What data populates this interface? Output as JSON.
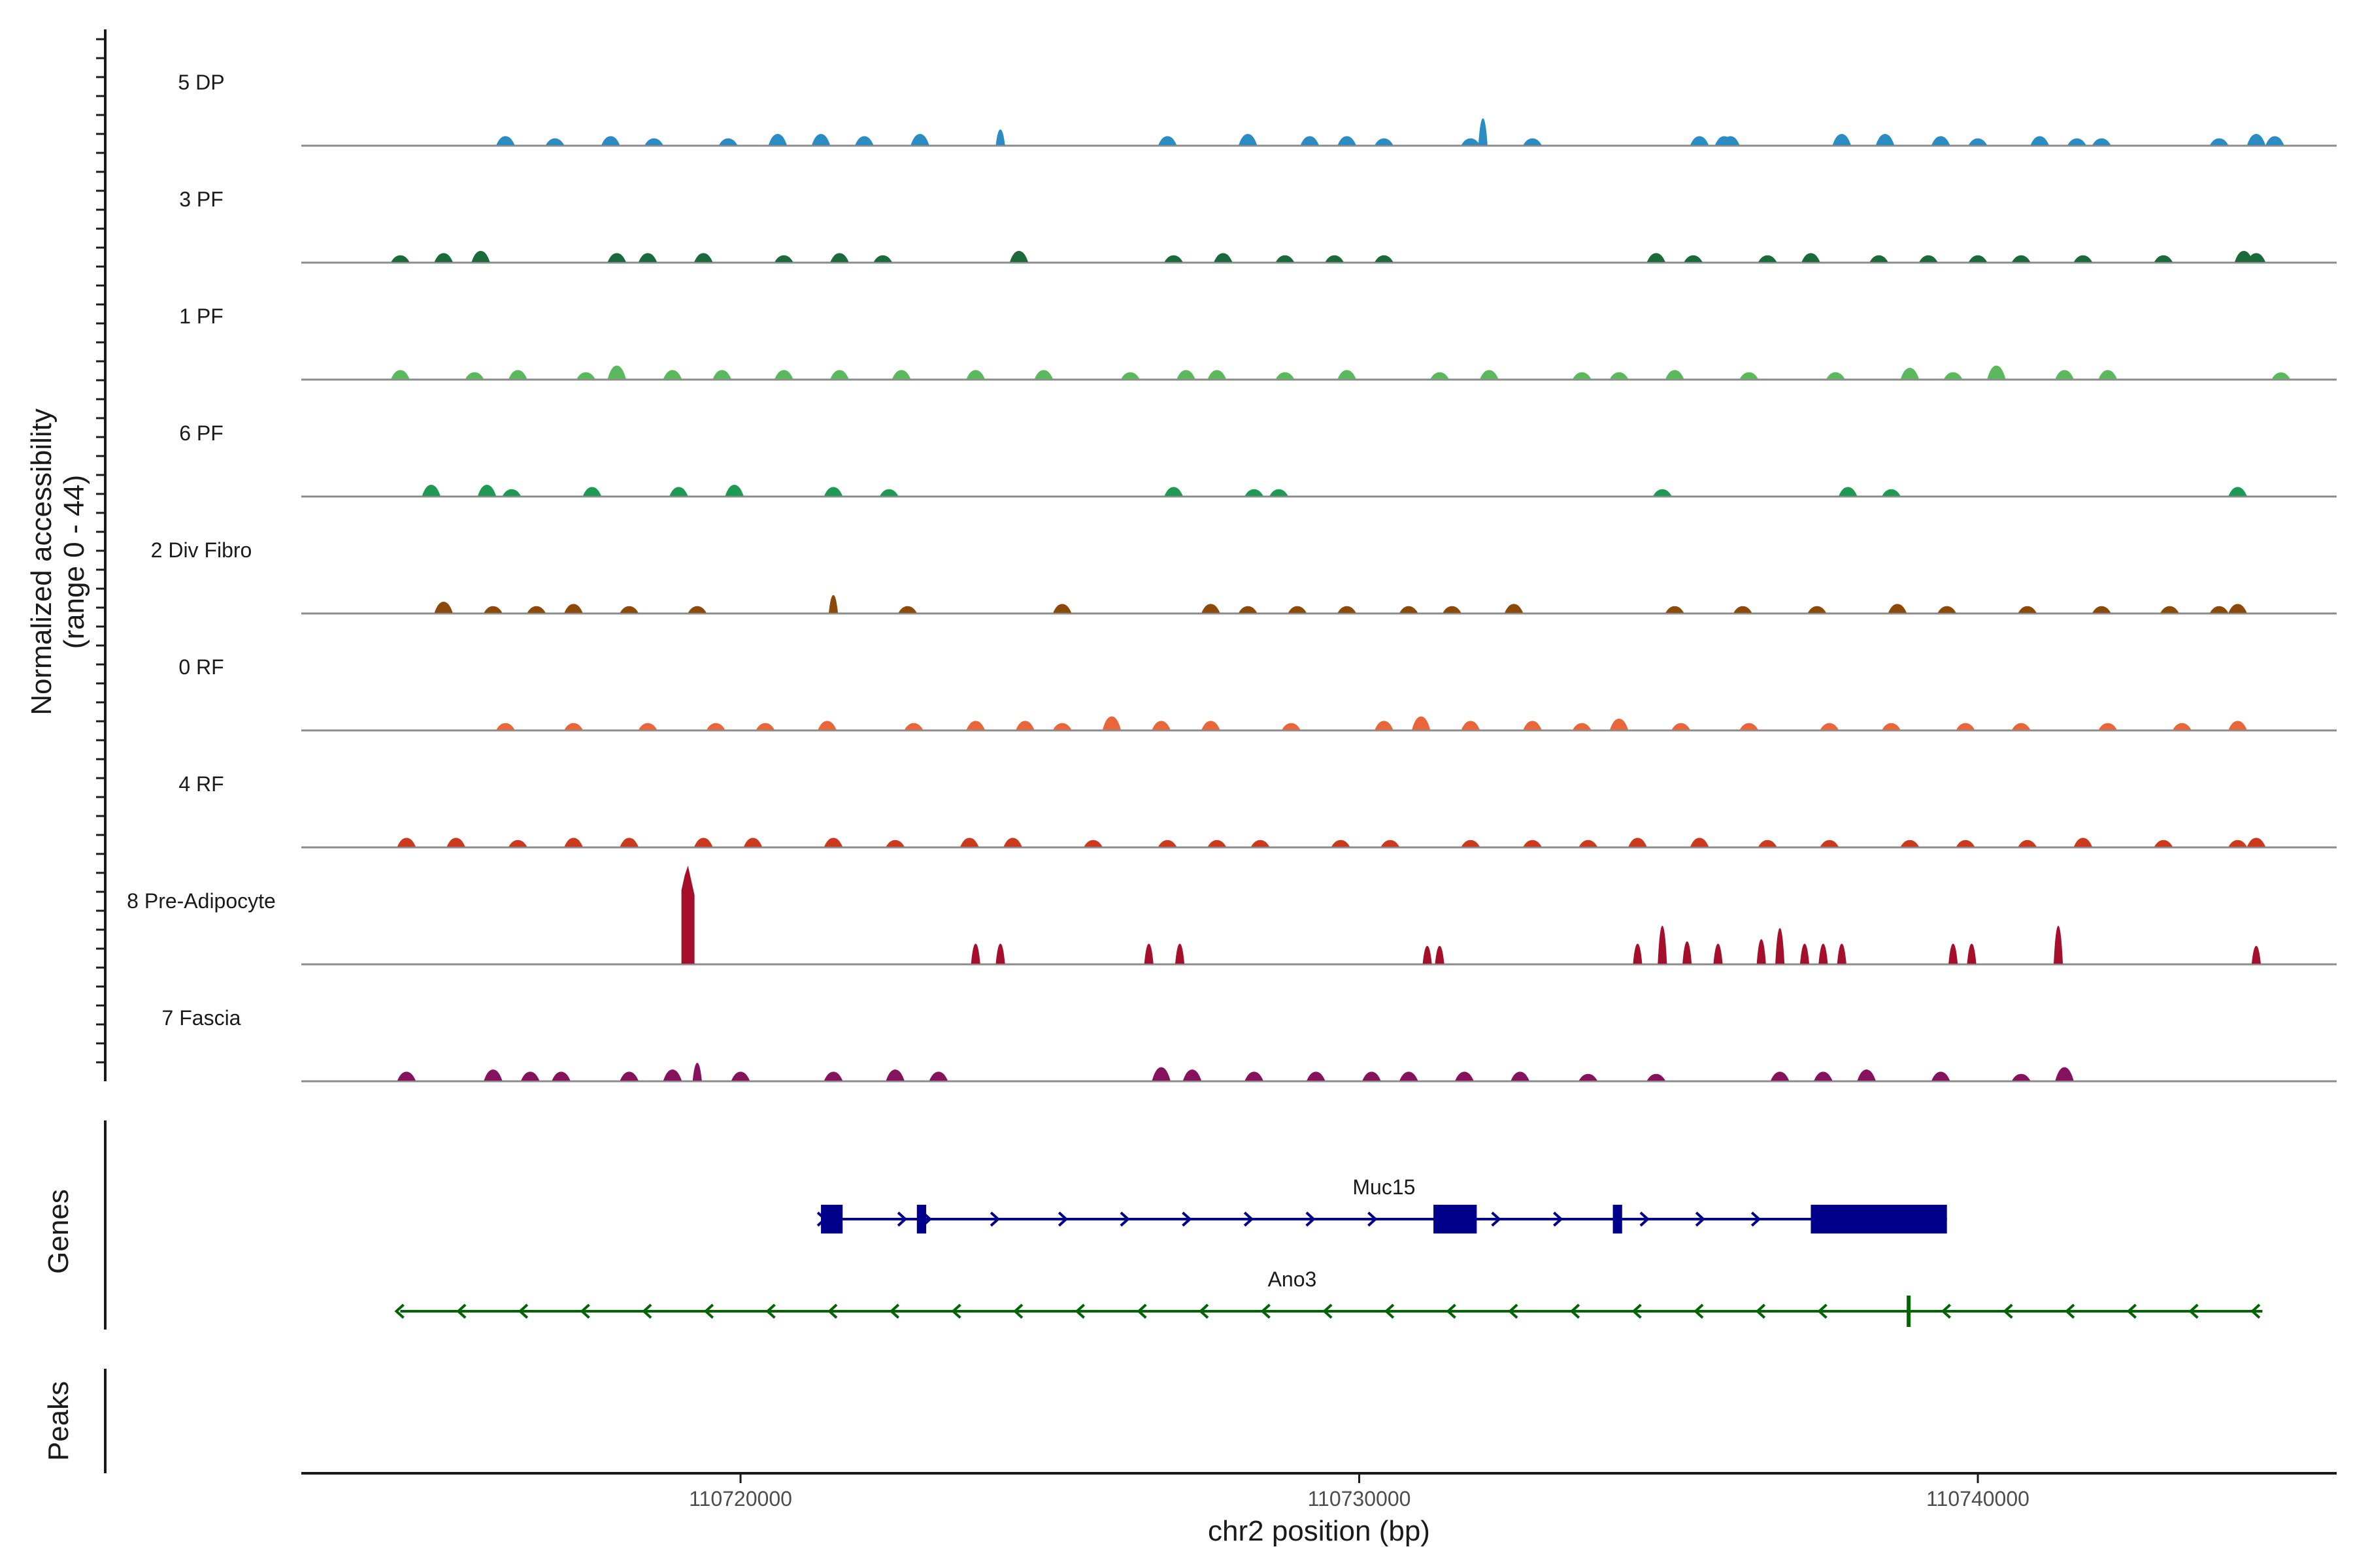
{
  "chart_data": {
    "type": "area",
    "title": "",
    "ylabel_line1": "Normalized accessibility",
    "ylabel_line2": "(range 0 - 44)",
    "ylim": [
      0,
      44
    ],
    "xlabel": "chr2 position (bp)",
    "xlim": [
      110712900,
      110745800
    ],
    "xticks": [
      110720000,
      110730000,
      110740000
    ],
    "xtick_labels": [
      "110720000",
      "110730000",
      "110740000"
    ],
    "genes_label": "Genes",
    "peaks_label": "Peaks",
    "series": [
      {
        "name": "5 DP",
        "color": "#2b8cc4",
        "peaks": [
          [
            110716200,
            4
          ],
          [
            110717000,
            3
          ],
          [
            110717900,
            4
          ],
          [
            110718600,
            3
          ],
          [
            110719800,
            3
          ],
          [
            110720600,
            5
          ],
          [
            110721300,
            5
          ],
          [
            110722000,
            4
          ],
          [
            110722900,
            5
          ],
          [
            110724200,
            7
          ],
          [
            110726900,
            4
          ],
          [
            110728200,
            5
          ],
          [
            110729200,
            4
          ],
          [
            110729800,
            4
          ],
          [
            110730400,
            3
          ],
          [
            110731800,
            3
          ],
          [
            110732000,
            12
          ],
          [
            110732800,
            3
          ],
          [
            110735500,
            4
          ],
          [
            110735900,
            4
          ],
          [
            110736000,
            4
          ],
          [
            110737800,
            5
          ],
          [
            110738500,
            5
          ],
          [
            110739400,
            3
          ],
          [
            110739400,
            4
          ],
          [
            110740000,
            3
          ],
          [
            110741000,
            4
          ],
          [
            110741600,
            3
          ],
          [
            110742000,
            3
          ],
          [
            110743900,
            3
          ],
          [
            110744500,
            5
          ],
          [
            110744800,
            4
          ]
        ]
      },
      {
        "name": "3 PF",
        "color": "#1b6b3a",
        "peaks": [
          [
            110714500,
            3
          ],
          [
            110715200,
            4
          ],
          [
            110715800,
            5
          ],
          [
            110718000,
            4
          ],
          [
            110718500,
            4
          ],
          [
            110719400,
            4
          ],
          [
            110720700,
            3
          ],
          [
            110721600,
            4
          ],
          [
            110722300,
            3
          ],
          [
            110724500,
            5
          ],
          [
            110727000,
            3
          ],
          [
            110727800,
            4
          ],
          [
            110728800,
            3
          ],
          [
            110729600,
            3
          ],
          [
            110730400,
            3
          ],
          [
            110734800,
            4
          ],
          [
            110735400,
            3
          ],
          [
            110736600,
            3
          ],
          [
            110737300,
            4
          ],
          [
            110738400,
            3
          ],
          [
            110739200,
            3
          ],
          [
            110740000,
            3
          ],
          [
            110740700,
            3
          ],
          [
            110741700,
            3
          ],
          [
            110743000,
            3
          ],
          [
            110744300,
            5
          ],
          [
            110744500,
            4
          ]
        ]
      },
      {
        "name": "1 PF",
        "color": "#5cb85c",
        "peaks": [
          [
            110714500,
            4
          ],
          [
            110715700,
            3
          ],
          [
            110716400,
            4
          ],
          [
            110717500,
            3
          ],
          [
            110718000,
            6
          ],
          [
            110718900,
            4
          ],
          [
            110719700,
            4
          ],
          [
            110720700,
            4
          ],
          [
            110721600,
            4
          ],
          [
            110722600,
            4
          ],
          [
            110723800,
            4
          ],
          [
            110724900,
            4
          ],
          [
            110726300,
            3
          ],
          [
            110727200,
            4
          ],
          [
            110727700,
            4
          ],
          [
            110728800,
            3
          ],
          [
            110729800,
            4
          ],
          [
            110731300,
            3
          ],
          [
            110732100,
            4
          ],
          [
            110733600,
            3
          ],
          [
            110734200,
            3
          ],
          [
            110735100,
            4
          ],
          [
            110736300,
            3
          ],
          [
            110737700,
            3
          ],
          [
            110738900,
            5
          ],
          [
            110739600,
            3
          ],
          [
            110740300,
            6
          ],
          [
            110741400,
            4
          ],
          [
            110742100,
            4
          ],
          [
            110744900,
            2
          ]
        ]
      },
      {
        "name": "6 PF",
        "color": "#1e9a52",
        "peaks": [
          [
            110715000,
            5
          ],
          [
            110715900,
            5
          ],
          [
            110716300,
            3
          ],
          [
            110717600,
            4
          ],
          [
            110719000,
            4
          ],
          [
            110719900,
            5
          ],
          [
            110721500,
            4
          ],
          [
            110722400,
            3
          ],
          [
            110727000,
            4
          ],
          [
            110728300,
            3
          ],
          [
            110728700,
            3
          ],
          [
            110734900,
            3
          ],
          [
            110737900,
            4
          ],
          [
            110738600,
            3
          ],
          [
            110744200,
            4
          ]
        ]
      },
      {
        "name": "2 Div Fibro",
        "color": "#8b4a0a",
        "peaks": [
          [
            110715200,
            5
          ],
          [
            110716000,
            3
          ],
          [
            110716700,
            3
          ],
          [
            110717300,
            4
          ],
          [
            110718200,
            3
          ],
          [
            110719300,
            3
          ],
          [
            110721500,
            8
          ],
          [
            110722700,
            3
          ],
          [
            110725200,
            4
          ],
          [
            110727600,
            4
          ],
          [
            110728200,
            3
          ],
          [
            110729000,
            3
          ],
          [
            110729800,
            3
          ],
          [
            110730800,
            3
          ],
          [
            110731500,
            3
          ],
          [
            110732500,
            4
          ],
          [
            110735100,
            3
          ],
          [
            110736200,
            3
          ],
          [
            110737400,
            3
          ],
          [
            110738700,
            4
          ],
          [
            110739500,
            3
          ],
          [
            110740800,
            3
          ],
          [
            110742000,
            3
          ],
          [
            110743100,
            3
          ],
          [
            110743900,
            3
          ],
          [
            110744200,
            4
          ]
        ]
      },
      {
        "name": "0 RF",
        "color": "#e8663a",
        "peaks": [
          [
            110716200,
            3
          ],
          [
            110717300,
            3
          ],
          [
            110718500,
            3
          ],
          [
            110719600,
            3
          ],
          [
            110720400,
            3
          ],
          [
            110721400,
            4
          ],
          [
            110722800,
            3
          ],
          [
            110723800,
            4
          ],
          [
            110724600,
            4
          ],
          [
            110725200,
            3
          ],
          [
            110726000,
            6
          ],
          [
            110726800,
            4
          ],
          [
            110727600,
            4
          ],
          [
            110728900,
            3
          ],
          [
            110730400,
            4
          ],
          [
            110731000,
            6
          ],
          [
            110731800,
            4
          ],
          [
            110732800,
            4
          ],
          [
            110733600,
            3
          ],
          [
            110734200,
            5
          ],
          [
            110735200,
            3
          ],
          [
            110736300,
            3
          ],
          [
            110737600,
            3
          ],
          [
            110738600,
            3
          ],
          [
            110739800,
            3
          ],
          [
            110740700,
            3
          ],
          [
            110742100,
            3
          ],
          [
            110743300,
            3
          ],
          [
            110744200,
            4
          ]
        ]
      },
      {
        "name": "4 RF",
        "color": "#cc3a1e",
        "peaks": [
          [
            110714600,
            4
          ],
          [
            110715400,
            4
          ],
          [
            110716400,
            3
          ],
          [
            110717300,
            4
          ],
          [
            110718200,
            4
          ],
          [
            110719400,
            4
          ],
          [
            110720200,
            4
          ],
          [
            110721500,
            4
          ],
          [
            110722500,
            3
          ],
          [
            110723700,
            4
          ],
          [
            110724400,
            4
          ],
          [
            110725700,
            3
          ],
          [
            110726900,
            3
          ],
          [
            110727700,
            3
          ],
          [
            110728400,
            3
          ],
          [
            110729700,
            3
          ],
          [
            110730500,
            3
          ],
          [
            110731800,
            3
          ],
          [
            110732800,
            3
          ],
          [
            110733700,
            3
          ],
          [
            110734500,
            4
          ],
          [
            110735500,
            4
          ],
          [
            110736600,
            3
          ],
          [
            110737600,
            3
          ],
          [
            110738900,
            3
          ],
          [
            110739800,
            3
          ],
          [
            110740800,
            3
          ],
          [
            110741700,
            4
          ],
          [
            110743000,
            3
          ],
          [
            110744200,
            3
          ],
          [
            110744500,
            4
          ]
        ]
      },
      {
        "name": "8 Pre-Adipocyte",
        "color": "#a50f2b",
        "peaks": [
          [
            110719150,
            44
          ],
          [
            110723800,
            9
          ],
          [
            110724200,
            9
          ],
          [
            110726600,
            9
          ],
          [
            110727100,
            9
          ],
          [
            110731100,
            8
          ],
          [
            110731300,
            8
          ],
          [
            110734500,
            9
          ],
          [
            110734900,
            17
          ],
          [
            110735300,
            10
          ],
          [
            110735800,
            9
          ],
          [
            110736500,
            11
          ],
          [
            110736800,
            16
          ],
          [
            110737200,
            9
          ],
          [
            110737500,
            9
          ],
          [
            110737800,
            9
          ],
          [
            110739600,
            9
          ],
          [
            110739900,
            9
          ],
          [
            110741300,
            17
          ],
          [
            110744500,
            8
          ]
        ]
      },
      {
        "name": "7 Fascia",
        "color": "#86125e",
        "peaks": [
          [
            110714600,
            4
          ],
          [
            110716000,
            5
          ],
          [
            110716600,
            4
          ],
          [
            110717100,
            4
          ],
          [
            110718200,
            4
          ],
          [
            110718900,
            5
          ],
          [
            110719300,
            8
          ],
          [
            110720000,
            4
          ],
          [
            110721500,
            4
          ],
          [
            110722500,
            5
          ],
          [
            110723200,
            4
          ],
          [
            110726800,
            6
          ],
          [
            110727300,
            5
          ],
          [
            110728300,
            4
          ],
          [
            110729300,
            4
          ],
          [
            110730200,
            4
          ],
          [
            110730800,
            4
          ],
          [
            110731700,
            4
          ],
          [
            110732600,
            4
          ],
          [
            110733700,
            3
          ],
          [
            110734800,
            3
          ],
          [
            110736800,
            4
          ],
          [
            110737500,
            4
          ],
          [
            110738200,
            5
          ],
          [
            110739400,
            4
          ],
          [
            110740700,
            3
          ],
          [
            110741400,
            6
          ]
        ]
      }
    ],
    "genes": [
      {
        "name": "Muc15",
        "strand": "+",
        "color": "#00008b",
        "start": 110721300,
        "end": 110739500,
        "exons": [
          [
            110721300,
            110721650
          ],
          [
            110722850,
            110723000
          ],
          [
            110731200,
            110731900
          ],
          [
            110734100,
            110734250
          ],
          [
            110737300,
            110739500
          ]
        ],
        "arrows": [
          110721300,
          110722600,
          110723000,
          110724100,
          110725200,
          110726200,
          110727200,
          110728200,
          110729200,
          110730200,
          110732200,
          110733200,
          110734600,
          110735500,
          110736400,
          110737400
        ]
      },
      {
        "name": "Ano3",
        "strand": "-",
        "color": "#006400",
        "start": 110714500,
        "end": 110744600,
        "exons": [
          [
            110738850,
            110738900
          ]
        ],
        "arrows": [
          110714500,
          110715500,
          110716500,
          110717500,
          110718500,
          110719500,
          110720500,
          110721500,
          110722500,
          110723500,
          110724500,
          110725500,
          110726500,
          110727500,
          110728500,
          110729500,
          110730500,
          110731500,
          110732500,
          110733500,
          110734500,
          110735500,
          110736500,
          110737500,
          110739500,
          110740500,
          110741500,
          110742500,
          110743500,
          110744500
        ]
      }
    ]
  }
}
